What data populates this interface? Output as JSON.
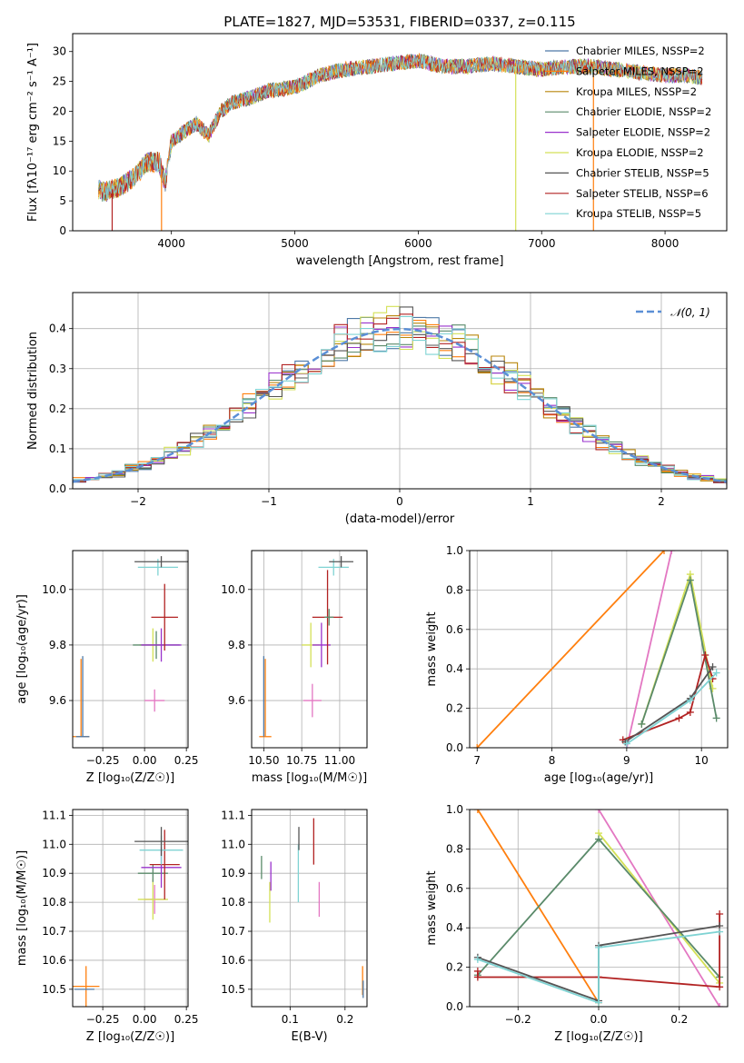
{
  "chart_data": [
    {
      "id": "spectrum",
      "type": "line",
      "title": "PLATE=1827, MJD=53531, FIBERID=0337, z=0.115",
      "xlabel": "wavelength [Angstrom, rest frame]",
      "ylabel": "Flux [fλ10⁻¹⁷ erg cm⁻² s⁻¹ A⁻¹]",
      "xlim": [
        3200,
        8500
      ],
      "ylim": [
        0,
        33
      ],
      "xticks": [
        "4000",
        "5000",
        "6000",
        "7000",
        "8000"
      ],
      "yticks": [
        "0",
        "5",
        "10",
        "15",
        "20",
        "25",
        "30"
      ],
      "grid": false,
      "legend_position": "top-right",
      "continuum": {
        "x": [
          3410,
          3450,
          3500,
          3600,
          3700,
          3800,
          3900,
          3950,
          4000,
          4100,
          4200,
          4300,
          4400,
          4500,
          4600,
          4800,
          5000,
          5200,
          5400,
          5600,
          5800,
          6000,
          6200,
          6400,
          6600,
          6800,
          7000,
          7200,
          7400,
          7600,
          7800,
          8000,
          8200,
          8300
        ],
        "y": [
          7,
          6.5,
          6.8,
          7.5,
          9,
          11.5,
          11.5,
          8,
          15,
          16.5,
          18,
          16,
          20,
          21.5,
          22,
          23.5,
          24,
          26,
          27,
          27.5,
          28,
          28.5,
          27.5,
          27.5,
          28,
          27.5,
          27,
          27.5,
          27.5,
          27,
          26.5,
          26,
          26,
          25.5
        ]
      },
      "series": [
        {
          "name": "Chabrier MILES, NSSP=2",
          "color": "#4e79a7"
        },
        {
          "name": "Salpeter MILES, NSSP=2",
          "color": "#ff7f0e"
        },
        {
          "name": "Kroupa MILES, NSSP=2",
          "color": "#b8860b"
        },
        {
          "name": "Chabrier ELODIE, NSSP=2",
          "color": "#5a8a6a"
        },
        {
          "name": "Salpeter ELODIE, NSSP=2",
          "color": "#9932cc"
        },
        {
          "name": "Kroupa ELODIE, NSSP=2",
          "color": "#d4e157"
        },
        {
          "name": "Chabrier STELIB, NSSP=5",
          "color": "#555555"
        },
        {
          "name": "Salpeter STELIB, NSSP=6",
          "color": "#b22222"
        },
        {
          "name": "Kroupa STELIB, NSSP=5",
          "color": "#7fd3d3"
        }
      ]
    },
    {
      "id": "residuals",
      "type": "line",
      "xlabel": "(data-model)/error",
      "ylabel": "Normed distribution",
      "xlim": [
        -2.5,
        2.5
      ],
      "ylim": [
        0,
        0.49
      ],
      "xticks": [
        "−2",
        "−1",
        "0",
        "1",
        "2"
      ],
      "yticks": [
        "0.0",
        "0.1",
        "0.2",
        "0.3",
        "0.4"
      ],
      "grid": true,
      "legend_position": "top-right",
      "legend_label": "𝒩(0, 1)",
      "gaussian": {
        "mean": 0,
        "sigma": 1
      }
    },
    {
      "id": "age_vs_z",
      "type": "scatter",
      "xlabel": "Z [log₁₀(Z/Z☉)]",
      "ylabel": "age  [log₁₀(age/yr)]",
      "xlim": [
        -0.43,
        0.26
      ],
      "ylim": [
        9.43,
        10.14
      ],
      "xticks": [
        "−0.25",
        "0.00",
        "0.25"
      ],
      "yticks": [
        "9.6",
        "9.8",
        "10.0"
      ],
      "points": [
        {
          "x": -0.38,
          "y": 9.47,
          "xe": 0.05,
          "ye": 0.0,
          "y2": 9.75,
          "c": "#ff7f0e"
        },
        {
          "x": -0.37,
          "y": 9.47,
          "xe": 0.04,
          "ye": 0.0,
          "y2": 9.76,
          "c": "#4e79a7"
        },
        {
          "x": 0.06,
          "y": 9.6,
          "xe": 0.06,
          "ye": 0.04,
          "c": "#e377c2"
        },
        {
          "x": 0.05,
          "y": 9.8,
          "xe": 0.08,
          "ye": 0.06,
          "c": "#d4e157"
        },
        {
          "x": 0.07,
          "y": 9.8,
          "xe": 0.14,
          "ye": 0.05,
          "c": "#5a8a6a"
        },
        {
          "x": 0.1,
          "y": 9.8,
          "xe": 0.12,
          "ye": 0.06,
          "c": "#9932cc"
        },
        {
          "x": 0.12,
          "y": 9.9,
          "xe": 0.08,
          "ye": 0.12,
          "c": "#b22222"
        },
        {
          "x": 0.08,
          "y": 10.08,
          "xe": 0.12,
          "ye": 0.03,
          "c": "#7fd3d3"
        },
        {
          "x": 0.1,
          "y": 10.1,
          "xe": 0.16,
          "ye": 0.02,
          "c": "#555555"
        }
      ]
    },
    {
      "id": "age_vs_mass",
      "type": "scatter",
      "xlabel": "mass [log₁₀(M/M☉)]",
      "ylabel": "",
      "xlim": [
        10.42,
        11.18
      ],
      "ylim": [
        9.43,
        10.14
      ],
      "xticks": [
        "10.50",
        "10.75",
        "11.00"
      ],
      "yticks": [
        "9.6",
        "9.8",
        "10.0"
      ],
      "points": [
        {
          "x": 10.51,
          "y": 9.47,
          "xe": 0.04,
          "ye": 0.0,
          "y2": 9.75,
          "c": "#ff7f0e"
        },
        {
          "x": 10.5,
          "y": 9.47,
          "xe": 0.0,
          "ye": 0.0,
          "y2": 9.76,
          "c": "#4e79a7"
        },
        {
          "x": 10.82,
          "y": 9.6,
          "xe": 0.06,
          "ye": 0.06,
          "c": "#e377c2"
        },
        {
          "x": 10.81,
          "y": 9.8,
          "xe": 0.06,
          "ye": 0.08,
          "c": "#d4e157"
        },
        {
          "x": 10.88,
          "y": 9.8,
          "xe": 0.06,
          "ye": 0.08,
          "c": "#9932cc"
        },
        {
          "x": 10.92,
          "y": 9.9,
          "xe": 0.1,
          "ye": 0.17,
          "c": "#b22222"
        },
        {
          "x": 10.93,
          "y": 9.9,
          "xe": 0.03,
          "ye": 0.03,
          "c": "#5a8a6a"
        },
        {
          "x": 10.96,
          "y": 10.08,
          "xe": 0.1,
          "ye": 0.03,
          "c": "#7fd3d3"
        },
        {
          "x": 11.01,
          "y": 10.1,
          "xe": 0.08,
          "ye": 0.02,
          "c": "#555555"
        }
      ]
    },
    {
      "id": "weight_vs_age",
      "type": "line",
      "xlabel": "age  [log₁₀(age/yr)]",
      "ylabel": "mass weight",
      "xlim": [
        6.9,
        10.35
      ],
      "ylim": [
        0,
        1
      ],
      "xticks": [
        "7",
        "8",
        "9",
        "10"
      ],
      "yticks": [
        "0.0",
        "0.2",
        "0.4",
        "0.6",
        "0.8",
        "1.0"
      ],
      "grid": true,
      "lines": [
        {
          "c": "#ff7f0e",
          "x": [
            7.0,
            9.5
          ],
          "y": [
            0.0,
            1.0
          ]
        },
        {
          "c": "#e377c2",
          "x": [
            9.0,
            9.6
          ],
          "y": [
            0.0,
            1.0
          ]
        },
        {
          "c": "#d4e157",
          "x": [
            9.2,
            9.85,
            10.15
          ],
          "y": [
            0.12,
            0.88,
            0.3
          ]
        },
        {
          "c": "#5a8a6a",
          "x": [
            9.2,
            9.85,
            10.2
          ],
          "y": [
            0.12,
            0.85,
            0.15
          ]
        },
        {
          "c": "#b22222",
          "x": [
            8.95,
            9.7,
            9.85,
            10.05,
            10.15
          ],
          "y": [
            0.04,
            0.15,
            0.18,
            0.47,
            0.35
          ]
        },
        {
          "c": "#555555",
          "x": [
            8.98,
            9.85,
            10.15
          ],
          "y": [
            0.03,
            0.25,
            0.41
          ]
        },
        {
          "c": "#7fd3d3",
          "x": [
            9.0,
            9.85,
            10.2
          ],
          "y": [
            0.02,
            0.24,
            0.38
          ]
        }
      ]
    },
    {
      "id": "mass_vs_z",
      "type": "scatter",
      "xlabel": "Z [log₁₀(Z/Z☉)]",
      "ylabel": "mass [log₁₀(M/M☉)]",
      "xlim": [
        -0.43,
        0.26
      ],
      "ylim": [
        10.44,
        11.12
      ],
      "xticks": [
        "−0.25",
        "0.00",
        "0.25"
      ],
      "yticks": [
        "10.5",
        "10.6",
        "10.7",
        "10.8",
        "10.9",
        "11.0",
        "11.1"
      ],
      "points": [
        {
          "x": -0.35,
          "y": 10.51,
          "xe": 0.08,
          "ye": 0.07,
          "c": "#ff7f0e"
        },
        {
          "x": -0.36,
          "y": 10.5,
          "xe": 0.06,
          "ye": 0.0,
          "c": "#4e79a7"
        },
        {
          "x": 0.06,
          "y": 10.81,
          "xe": 0.06,
          "ye": 0.05,
          "c": "#e377c2"
        },
        {
          "x": 0.05,
          "y": 10.81,
          "xe": 0.09,
          "ye": 0.07,
          "c": "#d4e157"
        },
        {
          "x": 0.05,
          "y": 10.9,
          "xe": 0.09,
          "ye": 0.03,
          "c": "#5a8a6a"
        },
        {
          "x": 0.1,
          "y": 10.92,
          "xe": 0.12,
          "ye": 0.07,
          "c": "#9932cc"
        },
        {
          "x": 0.12,
          "y": 10.93,
          "xe": 0.09,
          "ye": 0.12,
          "c": "#b22222"
        },
        {
          "x": 0.1,
          "y": 10.98,
          "xe": 0.13,
          "ye": 0.05,
          "c": "#7fd3d3"
        },
        {
          "x": 0.1,
          "y": 11.01,
          "xe": 0.16,
          "ye": 0.05,
          "c": "#555555"
        }
      ]
    },
    {
      "id": "mass_vs_ebv",
      "type": "scatter",
      "xlabel": "E(B-V)",
      "ylabel": "",
      "xlim": [
        0.03,
        0.24
      ],
      "ylim": [
        10.44,
        11.12
      ],
      "xticks": [
        "0.1",
        "0.2"
      ],
      "yticks": [
        "10.5",
        "10.6",
        "10.7",
        "10.8",
        "10.9",
        "11.0",
        "11.1"
      ],
      "points": [
        {
          "x": 0.048,
          "y": 10.92,
          "ye": 0.04,
          "c": "#5a8a6a"
        },
        {
          "x": 0.063,
          "y": 10.8,
          "ye": 0.07,
          "c": "#d4e157"
        },
        {
          "x": 0.065,
          "y": 10.89,
          "ye": 0.05,
          "c": "#9932cc"
        },
        {
          "x": 0.115,
          "y": 10.9,
          "ye": 0.1,
          "c": "#7fd3d3"
        },
        {
          "x": 0.116,
          "y": 11.02,
          "ye": 0.04,
          "c": "#555555"
        },
        {
          "x": 0.143,
          "y": 11.01,
          "ye": 0.08,
          "c": "#b22222"
        },
        {
          "x": 0.153,
          "y": 10.81,
          "ye": 0.06,
          "c": "#e377c2"
        },
        {
          "x": 0.232,
          "y": 10.53,
          "ye": 0.05,
          "c": "#ff7f0e"
        },
        {
          "x": 0.233,
          "y": 10.5,
          "ye": 0.03,
          "c": "#4e79a7"
        }
      ]
    },
    {
      "id": "weight_vs_z",
      "type": "line",
      "xlabel": "Z [log₁₀(Z/Z☉)]",
      "ylabel": "mass weight",
      "xlim": [
        -0.32,
        0.32
      ],
      "ylim": [
        0,
        1
      ],
      "xticks": [
        "−0.2",
        "0.0",
        "0.2"
      ],
      "yticks": [
        "0.0",
        "0.2",
        "0.4",
        "0.6",
        "0.8",
        "1.0"
      ],
      "grid": true,
      "lines": [
        {
          "c": "#ff7f0e",
          "x": [
            -0.3,
            0.0
          ],
          "y": [
            1.0,
            0.02
          ]
        },
        {
          "c": "#e377c2",
          "x": [
            0.0,
            0.3
          ],
          "y": [
            1.0,
            0.0
          ]
        },
        {
          "c": "#d4e157",
          "x": [
            0.0,
            0.3
          ],
          "y": [
            0.88,
            0.12
          ]
        },
        {
          "c": "#5a8a6a",
          "x": [
            -0.3,
            0.0,
            0.3
          ],
          "y": [
            0.16,
            0.85,
            0.15
          ]
        },
        {
          "c": "#b22222",
          "x": [
            -0.3,
            -0.3,
            0.0,
            0.3,
            0.3
          ],
          "y": [
            0.18,
            0.15,
            0.15,
            0.1,
            0.47
          ]
        },
        {
          "c": "#555555",
          "x": [
            -0.3,
            0.0,
            0.0,
            0.3
          ],
          "y": [
            0.25,
            0.03,
            0.31,
            0.41
          ]
        },
        {
          "c": "#7fd3d3",
          "x": [
            -0.3,
            0.0,
            0.0,
            0.3
          ],
          "y": [
            0.24,
            0.02,
            0.3,
            0.38
          ]
        }
      ]
    }
  ]
}
